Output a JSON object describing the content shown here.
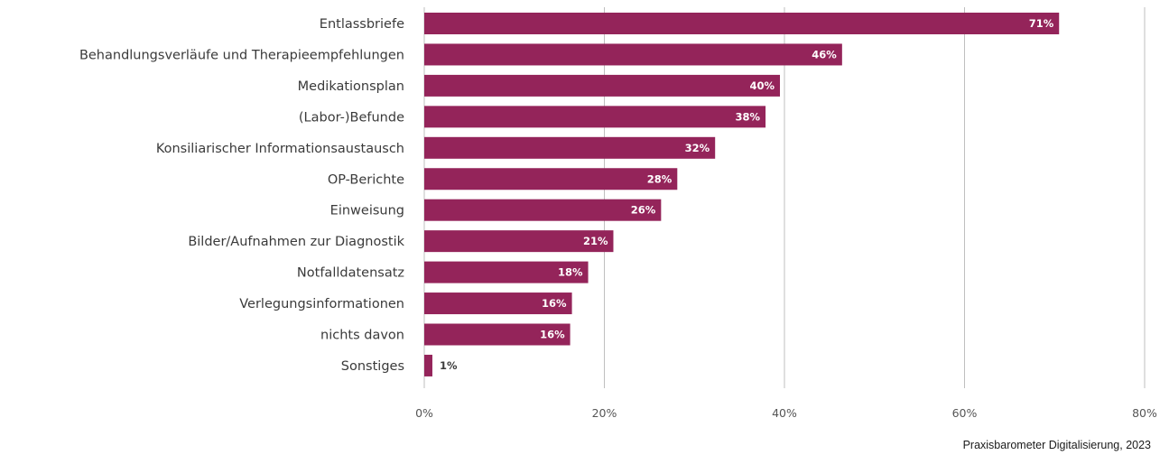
{
  "chart_data": {
    "type": "bar",
    "orientation": "horizontal",
    "categories": [
      "Entlassbriefe",
      "Behandlungsverläufe und Therapieempfehlungen",
      "Medikationsplan",
      "(Labor-)Befunde",
      "Konsiliarischer Informationsaustausch",
      "OP-Berichte",
      "Einweisung",
      "Bilder/Aufnahmen zur Diagnostik",
      "Notfalldatensatz",
      "Verlegungsinformationen",
      "nichts davon",
      "Sonstiges"
    ],
    "values": [
      70.5,
      46.4,
      39.5,
      37.9,
      32.3,
      28.1,
      26.3,
      21.0,
      18.2,
      16.4,
      16.2,
      0.9
    ],
    "data_labels": [
      "71%",
      "46%",
      "40%",
      "38%",
      "32%",
      "28%",
      "26%",
      "21%",
      "18%",
      "16%",
      "16%",
      "1%"
    ],
    "xlim": [
      0,
      80
    ],
    "x_ticks": [
      0,
      20,
      40,
      60,
      80
    ],
    "x_tick_labels": [
      "0%",
      "20%",
      "40%",
      "60%",
      "80%"
    ],
    "grid": "vertical",
    "legend": "none"
  },
  "colors": {
    "bar": "#94245a",
    "grid": "#bfbfbf",
    "value_label_inside": "#ffffff",
    "value_label_outside": "#3a3a3a"
  },
  "source": "Praxisbarometer Digitalisierung, 2023"
}
